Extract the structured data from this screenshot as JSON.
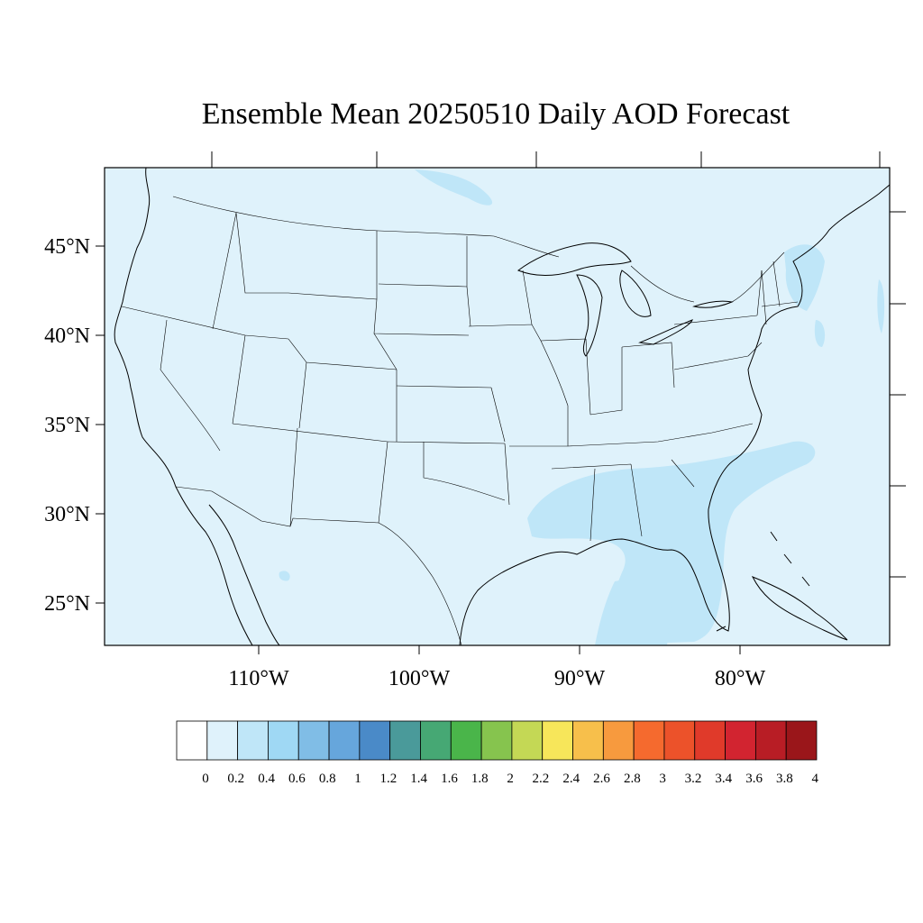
{
  "title": "Ensemble Mean 20250510 Daily AOD Forecast",
  "map": {
    "variable": "AOD",
    "date": "20250510",
    "region": "Contiguous United States",
    "background_color": "#dff2fb",
    "plume_color": "#bfe6f8",
    "lat_labels": [
      "45°N",
      "40°N",
      "35°N",
      "30°N",
      "25°N"
    ],
    "lon_labels": [
      "110°W",
      "100°W",
      "90°W",
      "80°W"
    ]
  },
  "colorbar": {
    "labels": [
      "0",
      "0.2",
      "0.4",
      "0.6",
      "0.8",
      "1",
      "1.2",
      "1.4",
      "1.6",
      "1.8",
      "2",
      "2.2",
      "2.4",
      "2.6",
      "2.8",
      "3",
      "3.2",
      "3.4",
      "3.6",
      "3.8",
      "4"
    ],
    "colors": [
      "#ffffff",
      "#dff2fb",
      "#bfe6f8",
      "#9fd8f4",
      "#80bde6",
      "#66a6dc",
      "#4a8ac8",
      "#4a9a9a",
      "#46a874",
      "#4ab54a",
      "#86c44e",
      "#c4d855",
      "#f7e65a",
      "#f7bf4b",
      "#f79a3e",
      "#f56a2e",
      "#ec522a",
      "#e03a2a",
      "#d22430",
      "#b81d25",
      "#9a161a"
    ]
  }
}
